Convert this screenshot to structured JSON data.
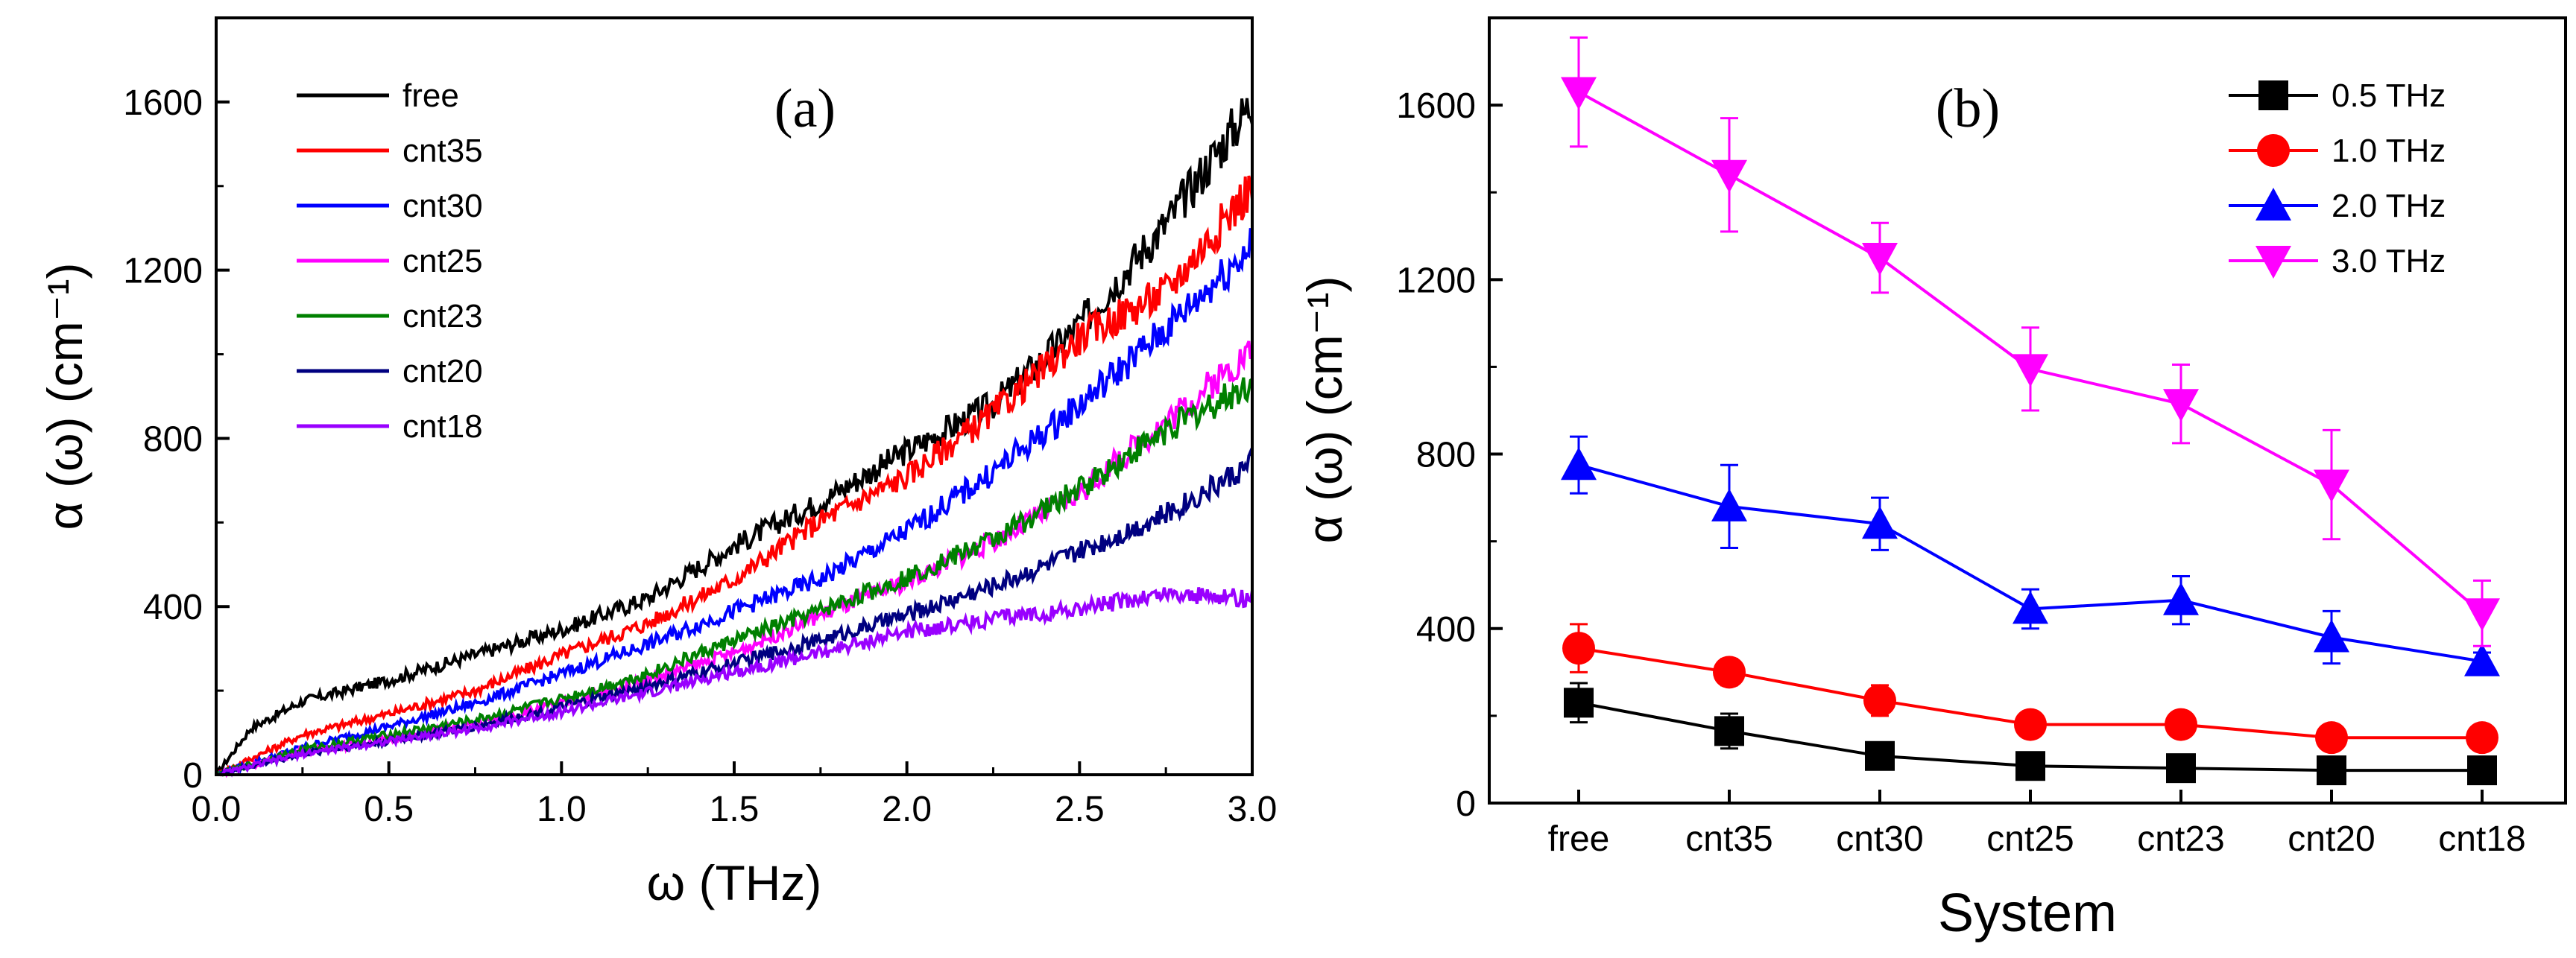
{
  "chart_data": [
    {
      "type": "line",
      "panel_label": "(a)",
      "xlabel": "ω (THz)",
      "ylabel": "α (ω) (cm⁻¹)",
      "xlim": [
        0.0,
        3.0
      ],
      "ylim": [
        0,
        1800
      ],
      "xticks": [
        0.0,
        0.5,
        1.0,
        1.5,
        2.0,
        2.5,
        3.0
      ],
      "xtick_labels": [
        "0.0",
        "0.5",
        "1.0",
        "1.5",
        "2.0",
        "2.5",
        "3.0"
      ],
      "yticks": [
        0,
        400,
        800,
        1200,
        1600
      ],
      "ytick_labels": [
        "0",
        "400",
        "800",
        "1200",
        "1600"
      ],
      "legend_position": "top-left",
      "series": [
        {
          "name": "free",
          "color": "#000000",
          "x": [
            0,
            0.1,
            0.25,
            0.5,
            0.75,
            1.0,
            1.25,
            1.5,
            1.75,
            2.0,
            2.25,
            2.5,
            2.75,
            3.0
          ],
          "values": [
            0,
            110,
            175,
            225,
            285,
            345,
            420,
            545,
            650,
            770,
            880,
            1070,
            1310,
            1600
          ]
        },
        {
          "name": "cnt35",
          "color": "#ff0000",
          "x": [
            0,
            0.25,
            0.5,
            0.75,
            1.0,
            1.25,
            1.5,
            1.75,
            2.0,
            2.25,
            2.5,
            2.75,
            3.0
          ],
          "values": [
            0,
            95,
            145,
            200,
            285,
            360,
            465,
            605,
            710,
            860,
            1040,
            1150,
            1400
          ]
        },
        {
          "name": "cnt30",
          "color": "#0000ff",
          "x": [
            0,
            0.25,
            0.5,
            0.75,
            1.0,
            1.25,
            1.5,
            1.75,
            2.0,
            2.25,
            2.5,
            2.75,
            3.0
          ],
          "values": [
            0,
            65,
            115,
            170,
            240,
            310,
            390,
            465,
            580,
            720,
            880,
            1060,
            1260
          ]
        },
        {
          "name": "cnt25",
          "color": "#ff00ff",
          "x": [
            0,
            0.25,
            0.5,
            0.75,
            1.0,
            1.25,
            1.5,
            1.75,
            2.0,
            2.25,
            2.5,
            2.75,
            3.0
          ],
          "values": [
            0,
            55,
            85,
            120,
            170,
            225,
            290,
            380,
            460,
            555,
            670,
            840,
            1010
          ]
        },
        {
          "name": "cnt23",
          "color": "#008000",
          "x": [
            0,
            0.25,
            0.5,
            0.75,
            1.0,
            1.25,
            1.5,
            1.75,
            2.0,
            2.25,
            2.5,
            2.75,
            3.0
          ],
          "values": [
            0,
            60,
            95,
            130,
            180,
            240,
            320,
            390,
            470,
            560,
            680,
            820,
            930
          ]
        },
        {
          "name": "cnt20",
          "color": "#000080",
          "x": [
            0,
            0.25,
            0.5,
            0.75,
            1.0,
            1.25,
            1.5,
            1.75,
            2.0,
            2.25,
            2.5,
            2.75,
            3.0
          ],
          "values": [
            0,
            50,
            80,
            115,
            160,
            210,
            265,
            320,
            380,
            450,
            530,
            620,
            740
          ]
        },
        {
          "name": "cnt18",
          "color": "#9900ff",
          "x": [
            0,
            0.25,
            0.5,
            0.75,
            1.0,
            1.25,
            1.5,
            1.75,
            2.0,
            2.25,
            2.5,
            2.75,
            3.0
          ],
          "values": [
            0,
            50,
            80,
            110,
            150,
            195,
            245,
            290,
            340,
            370,
            395,
            430,
            420
          ]
        }
      ]
    },
    {
      "type": "line",
      "panel_label": "(b)",
      "xlabel": "System",
      "ylabel": "α (ω) (cm⁻¹)",
      "ylim": [
        0,
        1800
      ],
      "yticks": [
        0,
        400,
        800,
        1200,
        1600
      ],
      "ytick_labels": [
        "0",
        "400",
        "800",
        "1200",
        "1600"
      ],
      "categories": [
        "free",
        "cnt35",
        "cnt30",
        "cnt25",
        "cnt23",
        "cnt20",
        "cnt18"
      ],
      "legend_position": "top-right",
      "series": [
        {
          "name": "0.5 THz",
          "color": "#000000",
          "marker": "square",
          "values": [
            230,
            165,
            108,
            85,
            80,
            75,
            75
          ],
          "errors": [
            45,
            40,
            20,
            12,
            10,
            10,
            10
          ]
        },
        {
          "name": "1.0 THz",
          "color": "#ff0000",
          "marker": "circle",
          "values": [
            355,
            300,
            235,
            180,
            180,
            150,
            150
          ],
          "errors": [
            55,
            30,
            35,
            15,
            15,
            15,
            12
          ]
        },
        {
          "name": "2.0 THz",
          "color": "#0000ff",
          "marker": "triangle-up",
          "values": [
            775,
            680,
            640,
            445,
            465,
            380,
            325
          ],
          "errors": [
            65,
            95,
            60,
            45,
            55,
            60,
            20
          ]
        },
        {
          "name": "3.0 THz",
          "color": "#ff00ff",
          "marker": "triangle-down",
          "values": [
            1630,
            1440,
            1250,
            995,
            915,
            730,
            435
          ],
          "errors": [
            125,
            130,
            80,
            95,
            90,
            125,
            75
          ]
        }
      ]
    }
  ]
}
